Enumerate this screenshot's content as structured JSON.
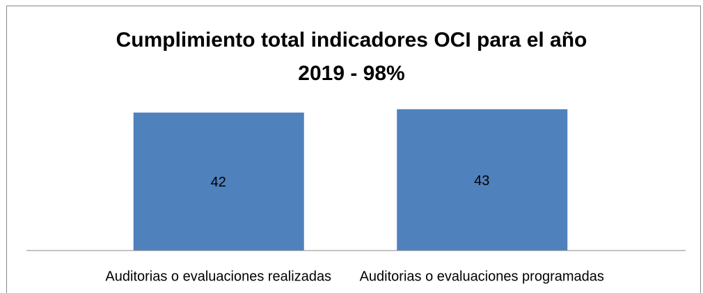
{
  "chart_data": {
    "type": "bar",
    "title": "Cumplimiento total indicadores OCI para el año 2019 - 98%",
    "categories": [
      "Auditorias o evaluaciones realizadas",
      "Auditorias o evaluaciones programadas"
    ],
    "values": [
      42,
      43
    ],
    "color": "#4f81bd",
    "ylim": [
      0,
      43
    ]
  }
}
